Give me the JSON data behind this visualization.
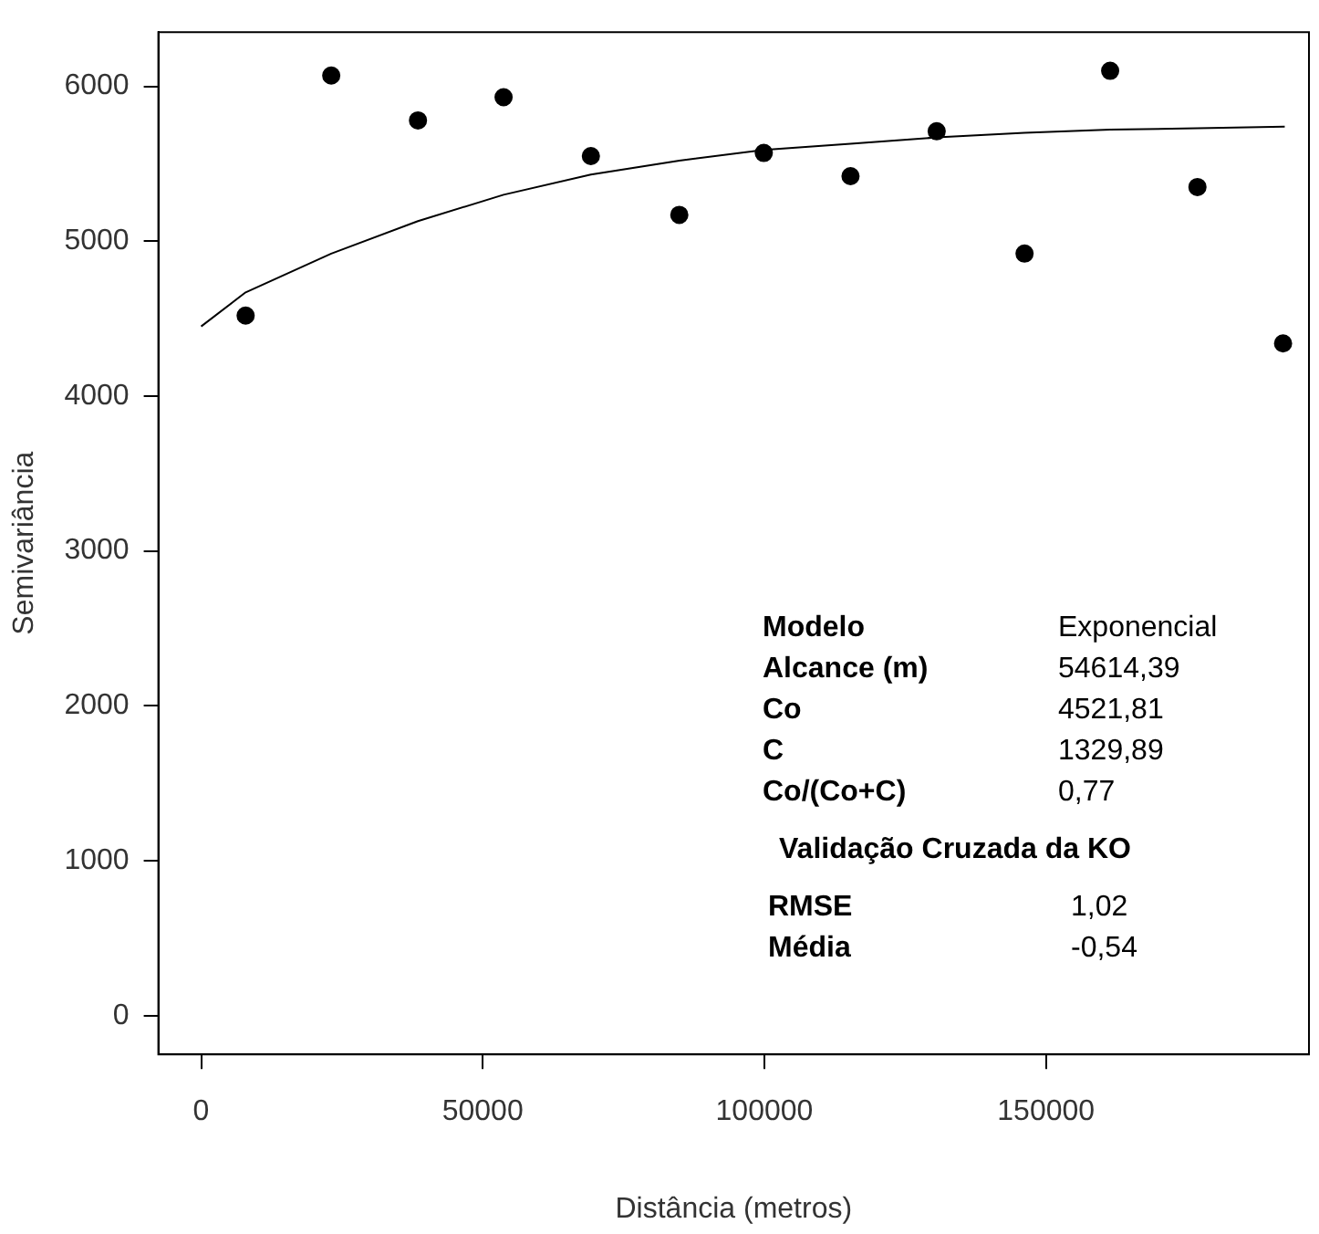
{
  "chart_data": {
    "type": "scatter",
    "xlabel": "Distância (metros)",
    "ylabel": "Semivariância",
    "xlim": [
      -7600,
      196700
    ],
    "xticks": [
      0,
      50000,
      100000,
      150000
    ],
    "ylim": [
      -250,
      6350
    ],
    "yticks": [
      0,
      1000,
      2000,
      3000,
      4000,
      5000,
      6000
    ],
    "grid": false,
    "legend": false,
    "marker": "circle",
    "series": [
      {
        "color": "#000000",
        "x": [
          7900,
          23100,
          38500,
          53700,
          69200,
          84900,
          99900,
          115300,
          130600,
          146200,
          161400,
          176900,
          192100
        ],
        "values": [
          4520,
          6070,
          5780,
          5930,
          5550,
          5170,
          5570,
          5420,
          5710,
          4920,
          6100,
          5350,
          4340
        ]
      },
      {
        "type": "line",
        "color": "#000000",
        "marker": "none",
        "line_style": "solid",
        "x": [
          0,
          7900,
          23100,
          38500,
          53700,
          69200,
          84900,
          99900,
          115300,
          130600,
          146200,
          161400,
          176900,
          192400
        ],
        "values": [
          4450,
          4670,
          4920,
          5130,
          5300,
          5430,
          5520,
          5590,
          5630,
          5670,
          5700,
          5720,
          5730,
          5740
        ]
      }
    ],
    "annotations": [
      "Modelo",
      "Exponencial",
      "Alcance (m)",
      "54614,39",
      "Co",
      "4521,81",
      "C",
      "1329,89",
      "Co/(Co+C)",
      "0,77",
      "Validação Cruzada da KO",
      "RMSE",
      "1,02",
      "Média",
      "-0,54"
    ]
  }
}
